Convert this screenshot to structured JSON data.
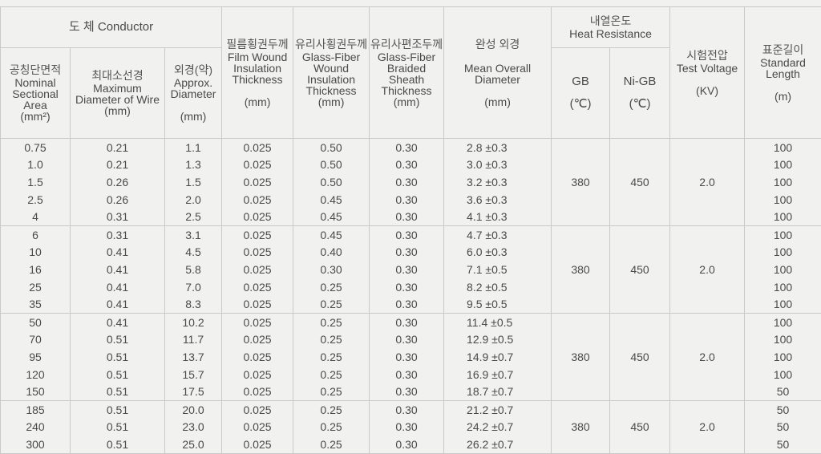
{
  "header": {
    "conductor": "도 체  Conductor",
    "area": {
      "ko": "공칭단면적",
      "en": "Nominal Sectional Area",
      "unit": "(mm²)"
    },
    "maxdia": {
      "ko": "최대소선경",
      "en": "Maximum Diameter of Wire",
      "unit": "(mm)"
    },
    "approx": {
      "ko": "외경(약)",
      "en": "Approx. Diameter",
      "unit": "(mm)"
    },
    "film": {
      "ko": "필름횡권두께",
      "en": "Film Wound Insulation Thickness",
      "unit": "(mm)"
    },
    "gfwound": {
      "ko": "유리사횡권두께",
      "en": "Glass-Fiber Wound Insulation Thickness",
      "unit": "(mm)"
    },
    "gfbraid": {
      "ko": "유리사편조두께",
      "en": "Glass-Fiber Braided Sheath Thickness",
      "unit": "(mm)"
    },
    "overall": {
      "ko": "완성 외경",
      "en": "Mean Overall Diameter",
      "unit": "(mm)"
    },
    "heat": {
      "ko": "내열온도",
      "en": "Heat Resistance",
      "gb": "GB",
      "nigb": "Ni-GB",
      "unit": "(℃)"
    },
    "voltage": {
      "ko": "시험전압",
      "en": "Test Voltage",
      "unit": "(KV)"
    },
    "length": {
      "ko": "표준길이",
      "en": "Standard Length",
      "unit": "(m)"
    }
  },
  "groups": [
    {
      "gb": "380",
      "nigb": "450",
      "kv": "2.0",
      "rows": [
        [
          "0.75",
          "0.21",
          "1.1",
          "0.025",
          "0.50",
          "0.30",
          "2.8  ±0.3",
          "100"
        ],
        [
          "1.0",
          "0.21",
          "1.3",
          "0.025",
          "0.50",
          "0.30",
          "3.0  ±0.3",
          "100"
        ],
        [
          "1.5",
          "0.26",
          "1.5",
          "0.025",
          "0.50",
          "0.30",
          "3.2  ±0.3",
          "100"
        ],
        [
          "2.5",
          "0.26",
          "2.0",
          "0.025",
          "0.45",
          "0.30",
          "3.6  ±0.3",
          "100"
        ],
        [
          "4",
          "0.31",
          "2.5",
          "0.025",
          "0.45",
          "0.30",
          "4.1  ±0.3",
          "100"
        ]
      ]
    },
    {
      "gb": "380",
      "nigb": "450",
      "kv": "2.0",
      "rows": [
        [
          "6",
          "0.31",
          "3.1",
          "0.025",
          "0.45",
          "0.30",
          "4.7  ±0.3",
          "100"
        ],
        [
          "10",
          "0.41",
          "4.5",
          "0.025",
          "0.40",
          "0.30",
          "6.0  ±0.3",
          "100"
        ],
        [
          "16",
          "0.41",
          "5.8",
          "0.025",
          "0.30",
          "0.30",
          "7.1  ±0.5",
          "100"
        ],
        [
          "25",
          "0.41",
          "7.0",
          "0.025",
          "0.25",
          "0.30",
          "8.2  ±0.5",
          "100"
        ],
        [
          "35",
          "0.41",
          "8.3",
          "0.025",
          "0.25",
          "0.30",
          "9.5  ±0.5",
          "100"
        ]
      ]
    },
    {
      "gb": "380",
      "nigb": "450",
      "kv": "2.0",
      "rows": [
        [
          "50",
          "0.41",
          "10.2",
          "0.025",
          "0.25",
          "0.30",
          "11.4 ±0.5",
          "100"
        ],
        [
          "70",
          "0.51",
          "11.7",
          "0.025",
          "0.25",
          "0.30",
          "12.9 ±0.5",
          "100"
        ],
        [
          "95",
          "0.51",
          "13.7",
          "0.025",
          "0.25",
          "0.30",
          "14.9 ±0.7",
          "100"
        ],
        [
          "120",
          "0.51",
          "15.7",
          "0.025",
          "0.25",
          "0.30",
          "16.9 ±0.7",
          "100"
        ],
        [
          "150",
          "0.51",
          "17.5",
          "0.025",
          "0.25",
          "0.30",
          "18.7 ±0.7",
          "50"
        ]
      ]
    },
    {
      "gb": "380",
      "nigb": "450",
      "kv": "2.0",
      "rows": [
        [
          "185",
          "0.51",
          "20.0",
          "0.025",
          "0.25",
          "0.30",
          "21.2 ±0.7",
          "50"
        ],
        [
          "240",
          "0.51",
          "23.0",
          "0.025",
          "0.25",
          "0.30",
          "24.2 ±0.7",
          "50"
        ],
        [
          "300",
          "0.51",
          "25.0",
          "0.025",
          "0.25",
          "0.30",
          "26.2 ±0.7",
          "50"
        ]
      ]
    }
  ]
}
